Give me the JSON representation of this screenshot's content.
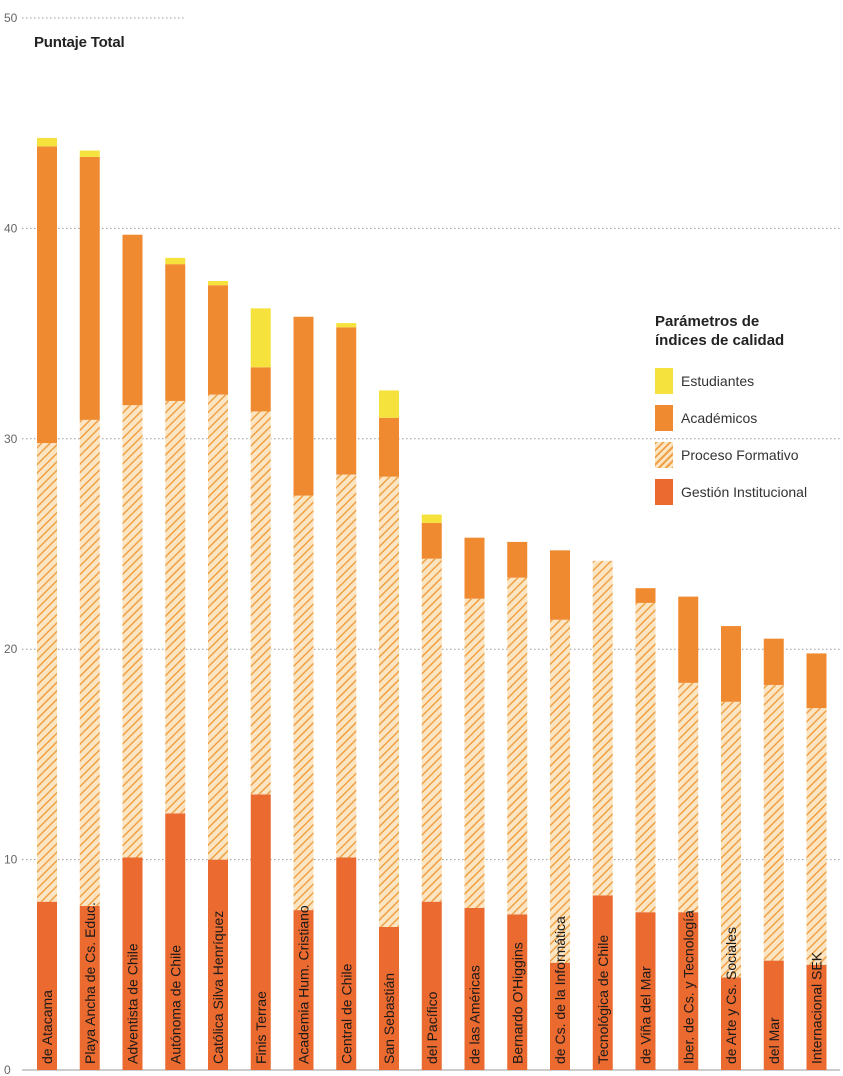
{
  "chart_data": {
    "type": "bar",
    "stacked": true,
    "ylabel": "Puntaje Total",
    "ylim": [
      0,
      50
    ],
    "yticks": [
      "0",
      "10",
      "20",
      "30",
      "40",
      "50"
    ],
    "grid": true,
    "legend_position": "right",
    "legend_title_line1": "Parámetros de",
    "legend_title_line2": "índices de calidad",
    "categories": [
      "de Atacama",
      "Playa Ancha de Cs.  Educ.",
      "Adventista de Chile",
      "Autónoma de Chile",
      "Católica Silva Henríquez",
      "Finis Terrae",
      "Academia  Hum.  Cristiano",
      "Central de Chile",
      "San Sebastián",
      "del Pacífico",
      "de las Américas",
      "Bernardo O'Higgins",
      "de Cs. de la Informática",
      "Tecnológica de Chile",
      "de Viña del Mar",
      "Iber. de Cs. y Tecnología",
      "de Arte y Cs. Sociales",
      "del Mar",
      "Internacional SEK"
    ],
    "series": [
      {
        "name": "Gestión Institucional",
        "color": "#ea6a2f",
        "pattern": "solid",
        "values": [
          8.0,
          7.8,
          10.1,
          12.2,
          10.0,
          13.1,
          7.6,
          10.1,
          6.8,
          8.0,
          7.7,
          7.4,
          5.1,
          8.3,
          7.5,
          7.5,
          4.4,
          5.2,
          5.0
        ]
      },
      {
        "name": "Proceso Formativo",
        "color": "#f0a045",
        "pattern": "hatched",
        "values": [
          21.8,
          23.1,
          21.5,
          19.6,
          22.1,
          18.2,
          19.7,
          18.2,
          21.4,
          16.3,
          14.7,
          16.0,
          16.3,
          15.9,
          14.7,
          10.9,
          13.1,
          13.1,
          12.2
        ]
      },
      {
        "name": "Académicos",
        "color": "#f08a30",
        "pattern": "solid",
        "values": [
          14.1,
          12.5,
          8.1,
          6.5,
          5.2,
          2.1,
          8.5,
          7.0,
          2.8,
          1.7,
          2.9,
          1.7,
          3.3,
          0,
          0.7,
          4.1,
          3.6,
          2.2,
          2.6
        ]
      },
      {
        "name": "Estudiantes",
        "color": "#f6e23c",
        "pattern": "solid",
        "values": [
          0.4,
          0.3,
          0,
          0.3,
          0.2,
          2.8,
          0,
          0.2,
          1.3,
          0.4,
          0,
          0,
          0,
          0,
          0,
          0,
          0,
          0,
          0
        ]
      }
    ]
  }
}
